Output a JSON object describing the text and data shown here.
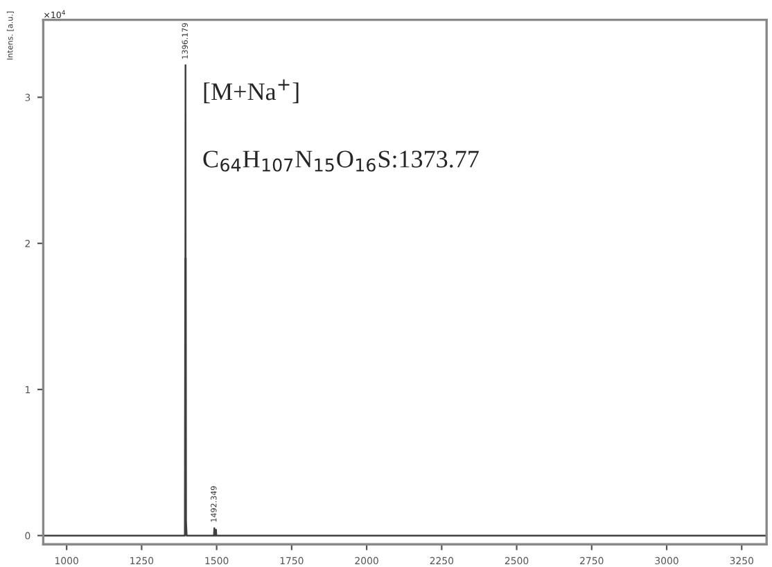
{
  "chart_data": {
    "type": "line",
    "ylabel": "Intens. [a.u.]",
    "annotations": [
      "×10$^{4}$",
      "[M+Na$^{+}$]",
      "C$_{64}$H$_{107}$N$_{15}$O$_{16}$S:1373.77",
      {
        "text": "1396.179",
        "x": 1396.2,
        "y": 3.22
      },
      {
        "text": "1492.349",
        "x": 1492.3,
        "y": 0.05
      }
    ],
    "series": [
      {
        "color": "#404040",
        "x": [
          922,
          1394,
          1395.3,
          1395.8,
          1396.2,
          1396.6,
          1397.2,
          1398,
          1400,
          1491,
          1492.3,
          1493.5,
          1497,
          1498,
          1499,
          3333
        ],
        "values": [
          0,
          0,
          1.9,
          1.9,
          3.22,
          1.9,
          1.9,
          0.1,
          0,
          0,
          0.05,
          0,
          0,
          0.04,
          0,
          0
        ]
      }
    ],
    "xlim": [
      922,
      3333
    ],
    "xticks": [
      1000,
      1250,
      1500,
      1750,
      2000,
      2250,
      2500,
      2750,
      3000,
      3250
    ],
    "ylim": [
      -0.06,
      3.53
    ],
    "yticks": [
      0,
      1,
      2,
      3
    ],
    "grid": false,
    "marker": "none",
    "line_style": "solid"
  }
}
